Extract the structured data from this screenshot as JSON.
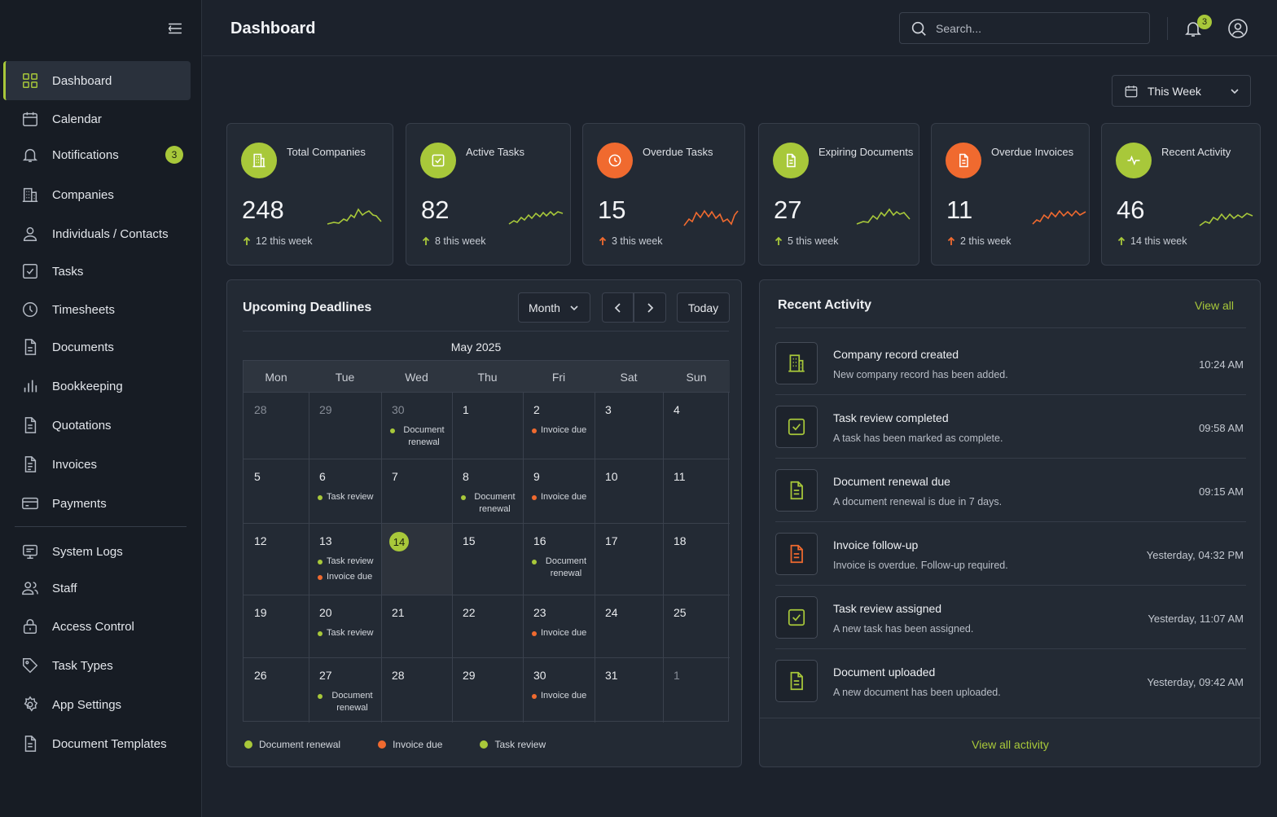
{
  "sidebar": {
    "items": [
      {
        "label": "Dashboard"
      },
      {
        "label": "Calendar"
      },
      {
        "label": "Notifications",
        "badge": "3"
      },
      {
        "label": "Companies"
      },
      {
        "label": "Individuals / Contacts"
      },
      {
        "label": "Tasks"
      },
      {
        "label": "Timesheets"
      },
      {
        "label": "Documents"
      },
      {
        "label": "Bookkeeping"
      },
      {
        "label": "Quotations"
      },
      {
        "label": "Invoices"
      },
      {
        "label": "Payments"
      },
      {
        "label": "System Logs"
      },
      {
        "label": "Staff"
      },
      {
        "label": "Access Control"
      },
      {
        "label": "Task Types"
      },
      {
        "label": "App Settings"
      },
      {
        "label": "Document Templates"
      }
    ]
  },
  "header": {
    "title": "Dashboard",
    "search_placeholder": "Search...",
    "notification_count": "3"
  },
  "filter": {
    "period": "This Week"
  },
  "colors": {
    "accent": "#a8c83a",
    "warning": "#f06a2f"
  },
  "stats": [
    {
      "label": "Total Companies",
      "value": "248",
      "delta": "12 this week",
      "icon": "building-icon",
      "color": "#a8c83a"
    },
    {
      "label": "Active Tasks",
      "value": "82",
      "delta": "8 this week",
      "icon": "check-square-icon",
      "color": "#a8c83a"
    },
    {
      "label": "Overdue Tasks",
      "value": "15",
      "delta": "3 this week",
      "icon": "clock-icon",
      "color": "#f06a2f"
    },
    {
      "label": "Expiring Documents",
      "value": "27",
      "delta": "5 this week",
      "icon": "document-icon",
      "color": "#a8c83a"
    },
    {
      "label": "Overdue Invoices",
      "value": "11",
      "delta": "2 this week",
      "icon": "invoice-icon",
      "color": "#f06a2f"
    },
    {
      "label": "Recent Activity",
      "value": "46",
      "delta": "14 this week",
      "icon": "activity-icon",
      "color": "#a8c83a"
    }
  ],
  "calendar": {
    "title": "Upcoming Deadlines",
    "view": "Month",
    "today_label": "Today",
    "month": "May 2025",
    "weekdays": [
      "Mon",
      "Tue",
      "Wed",
      "Thu",
      "Fri",
      "Sat",
      "Sun"
    ],
    "weeks": [
      [
        {
          "day": "28",
          "muted": true
        },
        {
          "day": "29",
          "muted": true
        },
        {
          "day": "30",
          "muted": true,
          "events": [
            {
              "type": "renewal",
              "text": "Document renewal"
            }
          ]
        },
        {
          "day": "1"
        },
        {
          "day": "2",
          "events": [
            {
              "type": "invoice",
              "text": "Invoice due"
            }
          ]
        },
        {
          "day": "3"
        },
        {
          "day": "4"
        }
      ],
      [
        {
          "day": "5"
        },
        {
          "day": "6",
          "events": [
            {
              "type": "review",
              "text": "Task review"
            }
          ]
        },
        {
          "day": "7"
        },
        {
          "day": "8",
          "events": [
            {
              "type": "renewal",
              "text": "Document renewal"
            }
          ]
        },
        {
          "day": "9",
          "events": [
            {
              "type": "invoice",
              "text": "Invoice due"
            }
          ]
        },
        {
          "day": "10"
        },
        {
          "day": "11"
        }
      ],
      [
        {
          "day": "12"
        },
        {
          "day": "13",
          "events": [
            {
              "type": "review",
              "text": "Task review"
            },
            {
              "type": "invoice",
              "text": "Invoice due"
            }
          ]
        },
        {
          "day": "14",
          "today": true
        },
        {
          "day": "15"
        },
        {
          "day": "16",
          "events": [
            {
              "type": "renewal",
              "text": "Document renewal"
            }
          ]
        },
        {
          "day": "17"
        },
        {
          "day": "18"
        }
      ],
      [
        {
          "day": "19"
        },
        {
          "day": "20",
          "events": [
            {
              "type": "review",
              "text": "Task review"
            }
          ]
        },
        {
          "day": "21"
        },
        {
          "day": "22"
        },
        {
          "day": "23",
          "events": [
            {
              "type": "invoice",
              "text": "Invoice due"
            }
          ]
        },
        {
          "day": "24"
        },
        {
          "day": "25"
        }
      ],
      [
        {
          "day": "26"
        },
        {
          "day": "27",
          "events": [
            {
              "type": "renewal",
              "text": "Document renewal"
            }
          ]
        },
        {
          "day": "28"
        },
        {
          "day": "29"
        },
        {
          "day": "30",
          "events": [
            {
              "type": "invoice",
              "text": "Invoice due"
            }
          ]
        },
        {
          "day": "31"
        },
        {
          "day": "1",
          "muted": true
        }
      ]
    ],
    "legend": [
      {
        "type": "renewal",
        "label": "Document renewal"
      },
      {
        "type": "invoice",
        "label": "Invoice due"
      },
      {
        "type": "review",
        "label": "Task review"
      }
    ],
    "event_colors": {
      "renewal": "#a8c83a",
      "invoice": "#f06a2f",
      "review": "#a8c83a"
    }
  },
  "activity": {
    "title": "Recent Activity",
    "view_all": "View all",
    "footer": "View all activity",
    "items": [
      {
        "title": "Company record created",
        "desc": "New company record has been added.",
        "time": "10:24 AM",
        "icon": "building-icon",
        "color": "#a8c83a"
      },
      {
        "title": "Task review completed",
        "desc": "A task has been marked as complete.",
        "time": "09:58 AM",
        "icon": "check-square-icon",
        "color": "#a8c83a"
      },
      {
        "title": "Document renewal due",
        "desc": "A document renewal is due in 7 days.",
        "time": "09:15 AM",
        "icon": "document-icon",
        "color": "#a8c83a"
      },
      {
        "title": "Invoice follow-up",
        "desc": "Invoice is overdue. Follow-up required.",
        "time": "Yesterday, 04:32 PM",
        "icon": "document-icon",
        "color": "#f06a2f"
      },
      {
        "title": "Task review assigned",
        "desc": "A new task has been assigned.",
        "time": "Yesterday, 11:07 AM",
        "icon": "check-square-icon",
        "color": "#a8c83a"
      },
      {
        "title": "Document uploaded",
        "desc": "A new document has been uploaded.",
        "time": "Yesterday, 09:42 AM",
        "icon": "document-icon",
        "color": "#a8c83a"
      }
    ]
  }
}
